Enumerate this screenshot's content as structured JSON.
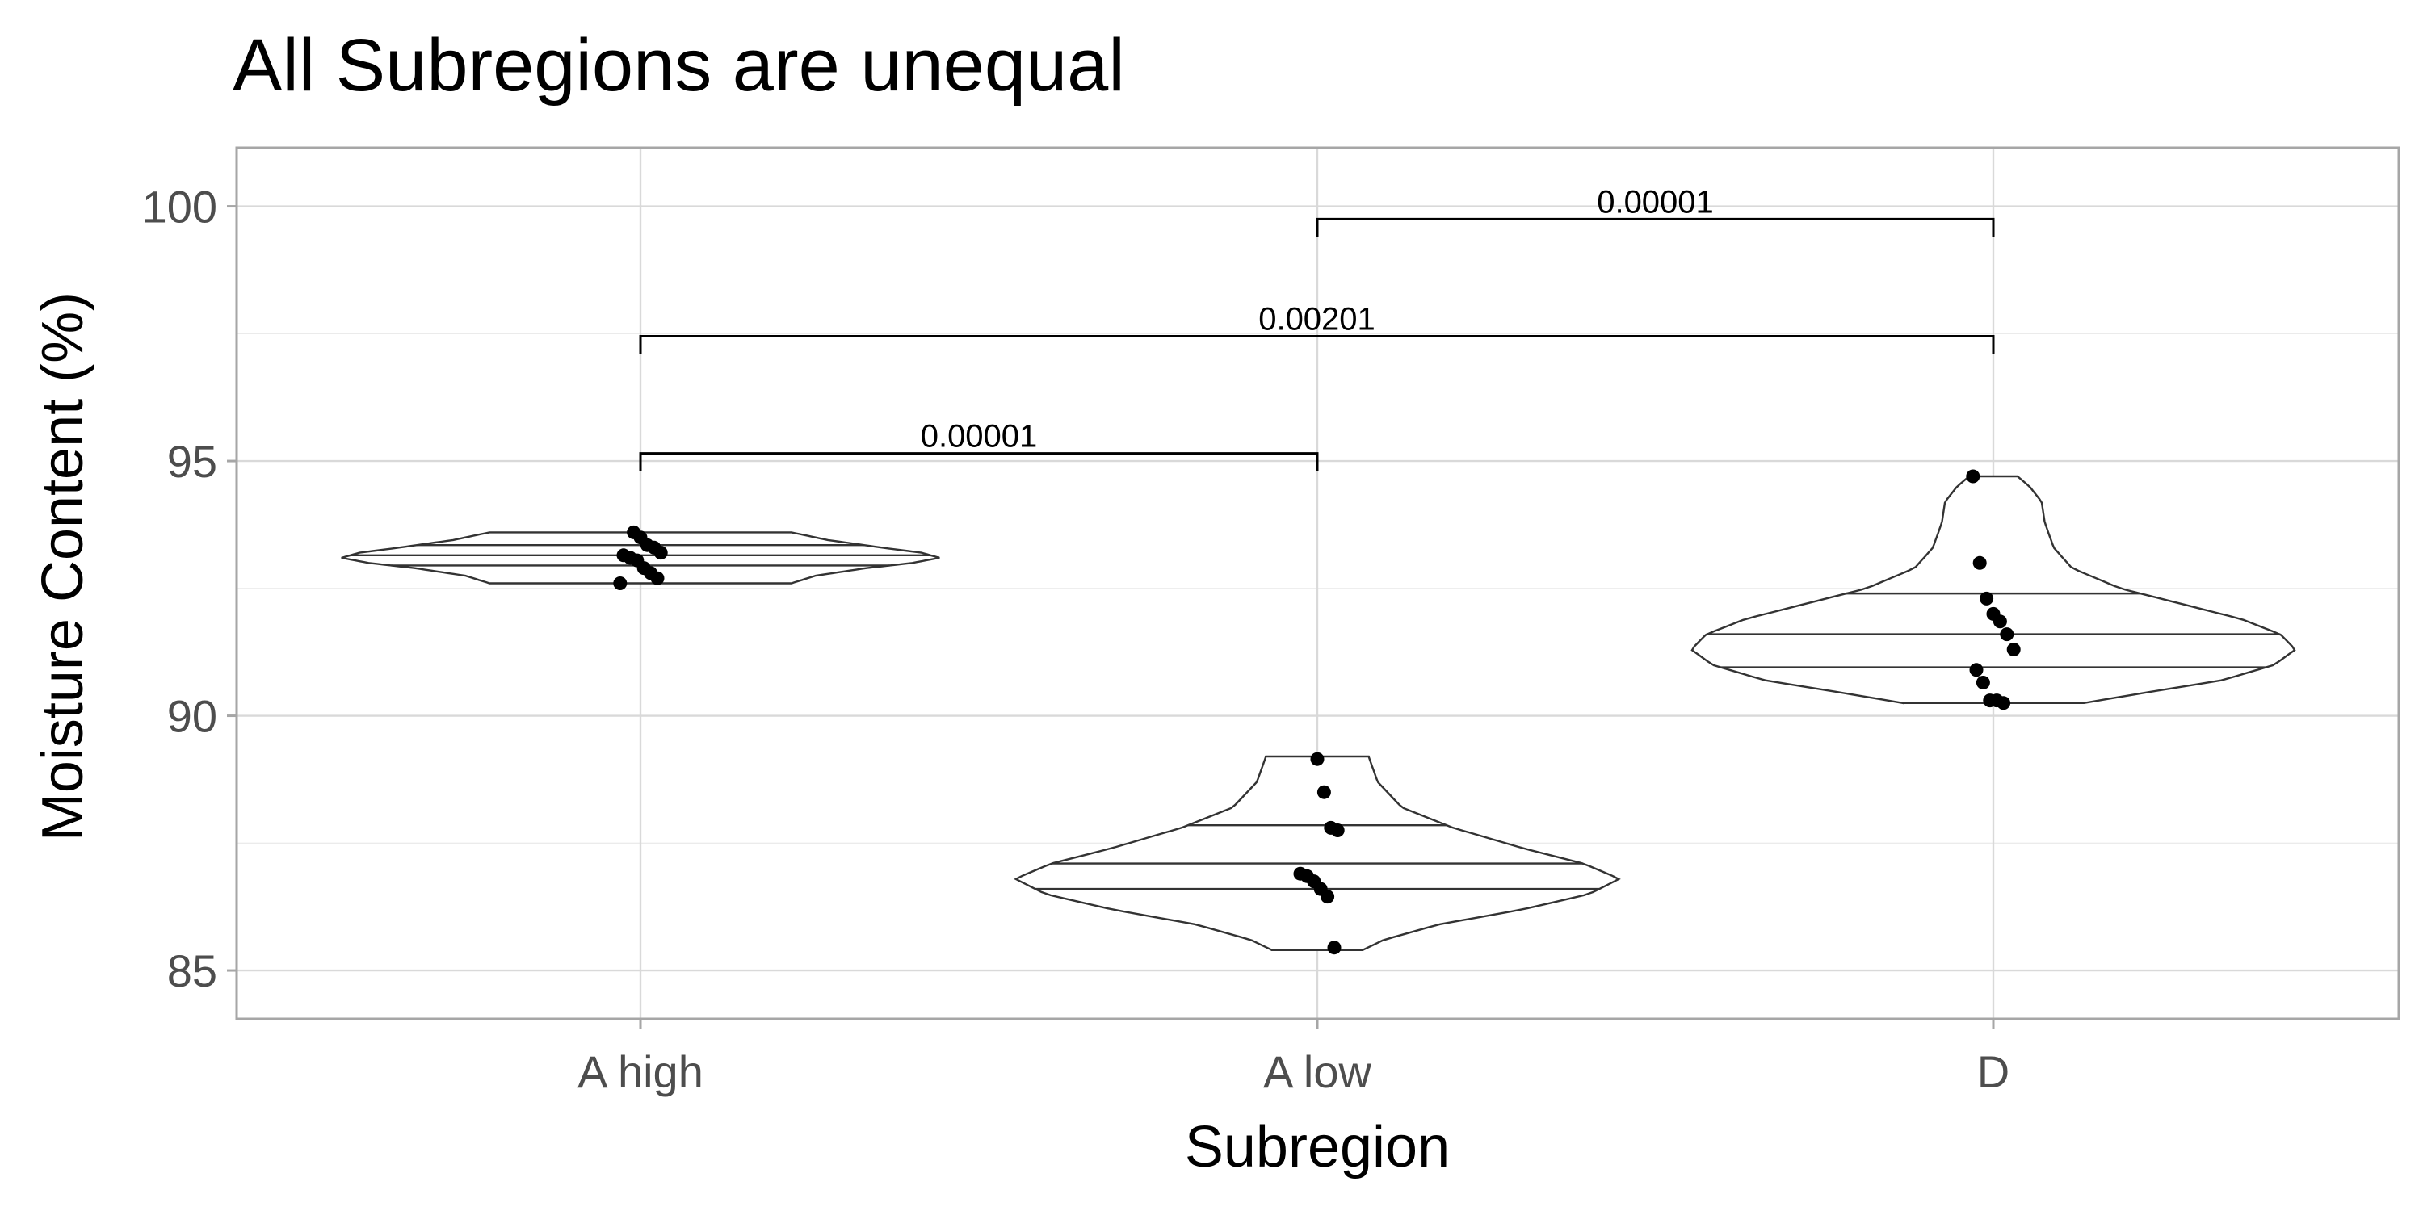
{
  "chart_data": {
    "type": "violin",
    "title": "All Subregions are unequal",
    "xlabel": "Subregion",
    "ylabel": "Moisture Content (%)",
    "categories": [
      "A high",
      "A low",
      "D"
    ],
    "ylim": [
      84.05,
      101.15
    ],
    "yticks": [
      85,
      90,
      95,
      100
    ],
    "grid": true,
    "violins": [
      {
        "category": "A high",
        "range": [
          92.6,
          93.6
        ],
        "quantiles": [
          92.95,
          93.15,
          93.35
        ],
        "density_profile": [
          [
            92.6,
            0.5
          ],
          [
            92.75,
            0.58
          ],
          [
            92.9,
            0.75
          ],
          [
            93.0,
            0.9
          ],
          [
            93.1,
            0.99
          ],
          [
            93.2,
            0.93
          ],
          [
            93.3,
            0.8
          ],
          [
            93.45,
            0.62
          ],
          [
            93.6,
            0.5
          ]
        ],
        "points": [
          92.6,
          92.7,
          92.8,
          92.9,
          93.05,
          93.1,
          93.15,
          93.2,
          93.3,
          93.35,
          93.5,
          93.6
        ]
      },
      {
        "category": "A low",
        "range": [
          85.4,
          89.2
        ],
        "quantiles": [
          86.6,
          87.1,
          87.85
        ],
        "density_profile": [
          [
            85.4,
            0.15
          ],
          [
            85.6,
            0.22
          ],
          [
            85.9,
            0.4
          ],
          [
            86.2,
            0.68
          ],
          [
            86.5,
            0.9
          ],
          [
            86.8,
            1.0
          ],
          [
            87.1,
            0.88
          ],
          [
            87.4,
            0.68
          ],
          [
            87.8,
            0.45
          ],
          [
            88.2,
            0.28
          ],
          [
            88.7,
            0.2
          ],
          [
            89.2,
            0.17
          ]
        ],
        "points": [
          85.45,
          86.45,
          86.6,
          86.75,
          86.85,
          86.9,
          87.75,
          87.8,
          88.5,
          89.15
        ]
      },
      {
        "category": "D",
        "range": [
          90.25,
          94.7
        ],
        "quantiles": [
          90.95,
          91.6,
          92.4
        ],
        "density_profile": [
          [
            90.25,
            0.3
          ],
          [
            90.45,
            0.5
          ],
          [
            90.7,
            0.76
          ],
          [
            91.0,
            0.93
          ],
          [
            91.3,
            1.0
          ],
          [
            91.6,
            0.95
          ],
          [
            91.9,
            0.82
          ],
          [
            92.2,
            0.62
          ],
          [
            92.5,
            0.42
          ],
          [
            92.9,
            0.26
          ],
          [
            93.3,
            0.2
          ],
          [
            93.8,
            0.17
          ],
          [
            94.2,
            0.16
          ],
          [
            94.5,
            0.12
          ],
          [
            94.7,
            0.08
          ]
        ],
        "points": [
          90.25,
          90.3,
          90.3,
          90.65,
          90.9,
          91.3,
          91.6,
          91.85,
          92.0,
          92.3,
          93.0,
          94.7
        ]
      }
    ],
    "comparisons": [
      {
        "from": "A high",
        "to": "A low",
        "label": "0.00001",
        "y": 95.15
      },
      {
        "from": "A high",
        "to": "D",
        "label": "0.00201",
        "y": 97.45
      },
      {
        "from": "A low",
        "to": "D",
        "label": "0.00001",
        "y": 99.75
      }
    ],
    "colors": {
      "violin_outline": "#333333",
      "violin_fill": "#ffffff",
      "points": "#000000",
      "grid": "#d9d9d9",
      "panel_border": "#a6a6a6",
      "tick_labels": "#4d4d4d"
    }
  }
}
